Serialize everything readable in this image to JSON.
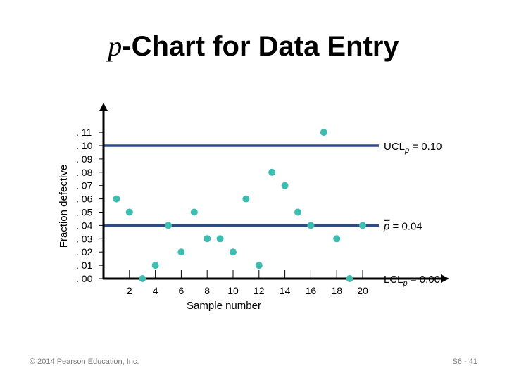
{
  "title": {
    "italic_part": "p",
    "rest": "-Chart for Data Entry"
  },
  "chart_data": {
    "type": "scatter",
    "title": "p-Chart for Data Entry",
    "xlabel": "Sample number",
    "ylabel": "Fraction defective",
    "x": [
      1,
      2,
      3,
      4,
      5,
      6,
      7,
      8,
      9,
      10,
      11,
      12,
      13,
      14,
      15,
      16,
      17,
      18,
      19,
      20
    ],
    "y": [
      0.06,
      0.05,
      0.0,
      0.01,
      0.04,
      0.02,
      0.05,
      0.03,
      0.03,
      0.02,
      0.06,
      0.01,
      0.08,
      0.07,
      0.05,
      0.04,
      0.11,
      0.03,
      0.0,
      0.04
    ],
    "xlim": [
      0,
      24
    ],
    "ylim": [
      0,
      0.115
    ],
    "xticks": [
      2,
      4,
      6,
      8,
      10,
      12,
      14,
      16,
      18,
      20
    ],
    "xtick_labels": [
      "2",
      "4",
      "6",
      "8",
      "10",
      "12",
      "14",
      "16",
      "18",
      "20"
    ],
    "yticks": [
      0,
      0.01,
      0.02,
      0.03,
      0.04,
      0.05,
      0.06,
      0.07,
      0.08,
      0.09,
      0.1,
      0.11
    ],
    "ytick_labels": [
      ". 00",
      ". 01",
      ". 02",
      ". 03",
      ". 04",
      ". 05",
      ". 06",
      ". 07",
      ". 08",
      ". 09",
      ". 10",
      ". 11"
    ],
    "control_lines": [
      {
        "name": "UCL",
        "value": 0.1,
        "label_main": "UCL",
        "label_sub": "p",
        "label_value": " = 0.10"
      },
      {
        "name": "center",
        "value": 0.04,
        "label_main": "p",
        "label_sub": "",
        "label_value": " =  0.04"
      },
      {
        "name": "LCL",
        "value": 0.0,
        "label_main": "LCL",
        "label_sub": "p",
        "label_value": " = 0.00"
      }
    ],
    "colors": {
      "points": "#3dbdb0",
      "lines": "#2e4a8e",
      "axis": "#000000"
    },
    "grid": false
  },
  "footer": {
    "copyright": "© 2014 Pearson Education, Inc.",
    "page": "S6 - 41"
  }
}
